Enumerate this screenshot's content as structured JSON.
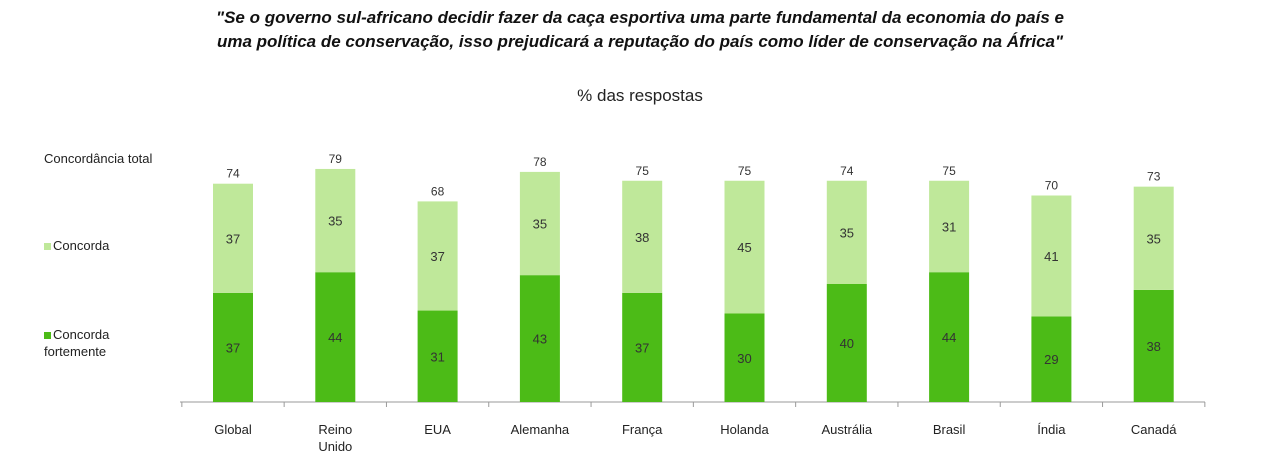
{
  "chart_data": {
    "type": "bar",
    "stacked": true,
    "title_line1": "\"Se o governo sul-africano decidir fazer da caça esportiva uma parte fundamental da economia do país e",
    "title_line2": "uma política de conservação, isso prejudicará a reputação do país como líder de conservação na África\"",
    "subtitle": "% das respostas",
    "categories": [
      "Global",
      "Reino Unido",
      "EUA",
      "Alemanha",
      "França",
      "Holanda",
      "Austrália",
      "Brasil",
      "Índia",
      "Canadá"
    ],
    "category_lines": [
      [
        "Global"
      ],
      [
        "Reino",
        "Unido"
      ],
      [
        "EUA"
      ],
      [
        "Alemanha"
      ],
      [
        "França"
      ],
      [
        "Holanda"
      ],
      [
        "Austrália"
      ],
      [
        "Brasil"
      ],
      [
        "Índia"
      ],
      [
        "Canadá"
      ]
    ],
    "totals": [
      74,
      79,
      68,
      78,
      75,
      75,
      74,
      75,
      70,
      73
    ],
    "series": [
      {
        "name": "Concorda fortemente",
        "color": "#4cbb17",
        "values": [
          37,
          44,
          31,
          43,
          37,
          30,
          40,
          44,
          29,
          38
        ]
      },
      {
        "name": "Concorda",
        "color": "#bfe89a",
        "values": [
          37,
          35,
          37,
          35,
          38,
          45,
          35,
          31,
          41,
          35
        ]
      }
    ],
    "legend": {
      "total_label": "Concordância total",
      "agree_label": "Concorda",
      "strong_label": "Concorda fortemente"
    },
    "ylim": [
      0,
      80
    ],
    "grid": false
  }
}
